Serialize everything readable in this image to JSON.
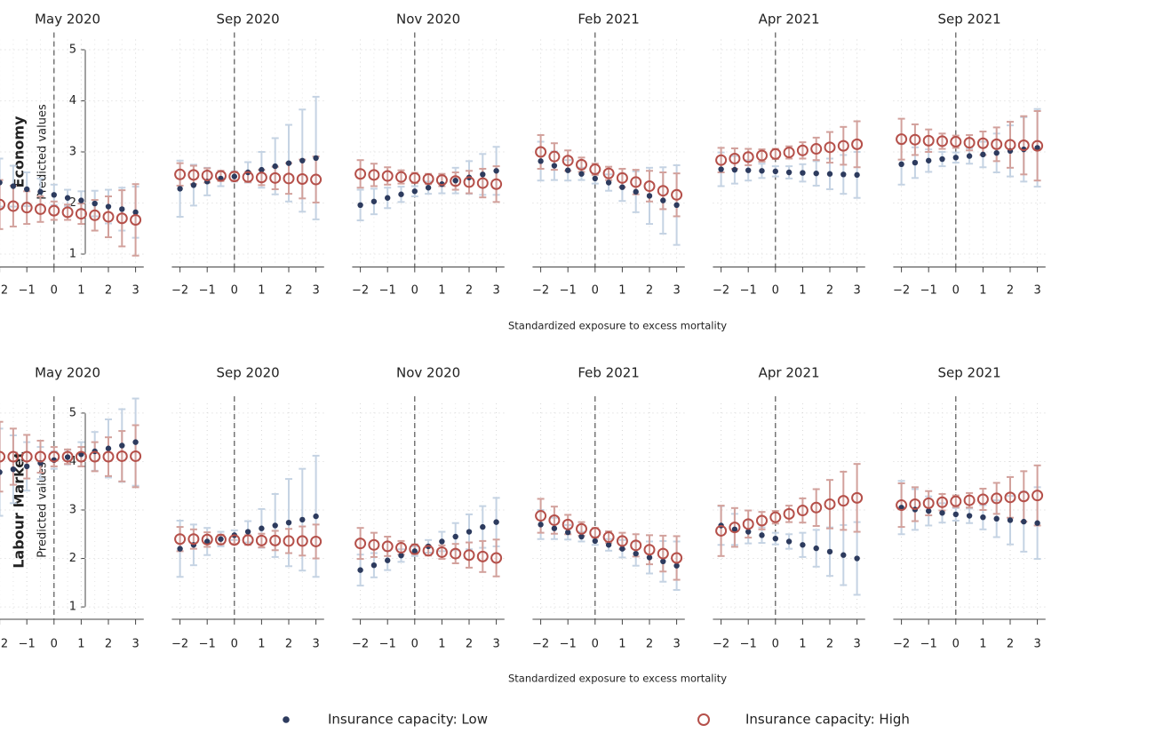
{
  "chart_data": {
    "type": "errorbar",
    "xlabel": "Standardized exposure to excess mortality",
    "ylabel": "Predicted values",
    "x": [
      -2,
      -1.5,
      -1,
      -0.5,
      0,
      0.5,
      1,
      1.5,
      2,
      2.5,
      3
    ],
    "xlim": [
      -2.3,
      3.3
    ],
    "xticks": [
      {
        "value": -2,
        "label": "−2"
      },
      {
        "value": -1,
        "label": "−1"
      },
      0,
      1,
      2,
      3
    ],
    "ylim": [
      0.8,
      5.2
    ],
    "yticks": [
      1,
      2,
      3,
      4,
      5
    ],
    "vline": 0,
    "grid": true,
    "legend": "bottom",
    "series": [
      {
        "name": "Insurance capacity: Low",
        "color": "#2d3b5e",
        "error_color": "#c5d3e3",
        "marker": "filled"
      },
      {
        "name": "Insurance capacity: High",
        "color": "#b5504a",
        "error_color": "#d2a19c",
        "marker": "open"
      }
    ],
    "rows": [
      {
        "label": "Economy",
        "panels": [
          {
            "title": "May 2020",
            "series": [
              {
                "values": [
                  2.4,
                  2.33,
                  2.27,
                  2.22,
                  2.16,
                  2.1,
                  2.05,
                  1.99,
                  1.93,
                  1.88,
                  1.82
                ],
                "errors": [
                  0.47,
                  0.4,
                  0.33,
                  0.26,
                  0.2,
                  0.16,
                  0.18,
                  0.25,
                  0.33,
                  0.42,
                  0.5
                ]
              },
              {
                "values": [
                  1.97,
                  1.94,
                  1.91,
                  1.88,
                  1.85,
                  1.82,
                  1.79,
                  1.76,
                  1.73,
                  1.7,
                  1.67
                ],
                "errors": [
                  0.48,
                  0.4,
                  0.32,
                  0.25,
                  0.18,
                  0.15,
                  0.2,
                  0.3,
                  0.4,
                  0.55,
                  0.7
                ]
              }
            ]
          },
          {
            "title": "Sep 2020",
            "series": [
              {
                "values": [
                  2.28,
                  2.35,
                  2.42,
                  2.48,
                  2.52,
                  2.6,
                  2.65,
                  2.72,
                  2.78,
                  2.83,
                  2.88
                ],
                "errors": [
                  0.55,
                  0.4,
                  0.27,
                  0.15,
                  0.1,
                  0.2,
                  0.35,
                  0.55,
                  0.75,
                  1.0,
                  1.2
                ]
              },
              {
                "values": [
                  2.56,
                  2.55,
                  2.54,
                  2.53,
                  2.52,
                  2.51,
                  2.5,
                  2.49,
                  2.48,
                  2.47,
                  2.46
                ],
                "errors": [
                  0.22,
                  0.18,
                  0.14,
                  0.1,
                  0.08,
                  0.1,
                  0.15,
                  0.22,
                  0.3,
                  0.38,
                  0.45
                ]
              }
            ]
          },
          {
            "title": "Nov 2020",
            "series": [
              {
                "values": [
                  1.96,
                  2.03,
                  2.1,
                  2.17,
                  2.23,
                  2.3,
                  2.37,
                  2.44,
                  2.5,
                  2.56,
                  2.63
                ],
                "errors": [
                  0.3,
                  0.25,
                  0.2,
                  0.15,
                  0.1,
                  0.12,
                  0.18,
                  0.25,
                  0.32,
                  0.4,
                  0.47
                ]
              },
              {
                "values": [
                  2.57,
                  2.55,
                  2.53,
                  2.51,
                  2.49,
                  2.47,
                  2.45,
                  2.43,
                  2.41,
                  2.39,
                  2.37
                ],
                "errors": [
                  0.27,
                  0.22,
                  0.17,
                  0.13,
                  0.1,
                  0.1,
                  0.12,
                  0.17,
                  0.22,
                  0.28,
                  0.35
                ]
              }
            ]
          },
          {
            "title": "Feb 2021",
            "series": [
              {
                "values": [
                  2.82,
                  2.73,
                  2.64,
                  2.57,
                  2.48,
                  2.4,
                  2.31,
                  2.22,
                  2.14,
                  2.05,
                  1.96
                ],
                "errors": [
                  0.38,
                  0.28,
                  0.2,
                  0.12,
                  0.1,
                  0.16,
                  0.27,
                  0.4,
                  0.55,
                  0.65,
                  0.78
                ]
              },
              {
                "values": [
                  3.0,
                  2.91,
                  2.83,
                  2.75,
                  2.66,
                  2.58,
                  2.49,
                  2.41,
                  2.33,
                  2.24,
                  2.16
                ],
                "errors": [
                  0.33,
                  0.26,
                  0.2,
                  0.14,
                  0.11,
                  0.13,
                  0.18,
                  0.24,
                  0.3,
                  0.36,
                  0.42
                ]
              }
            ]
          },
          {
            "title": "Apr 2021",
            "series": [
              {
                "values": [
                  2.66,
                  2.65,
                  2.64,
                  2.63,
                  2.62,
                  2.6,
                  2.59,
                  2.58,
                  2.57,
                  2.56,
                  2.55
                ],
                "errors": [
                  0.33,
                  0.27,
                  0.2,
                  0.14,
                  0.1,
                  0.12,
                  0.17,
                  0.24,
                  0.3,
                  0.38,
                  0.45
                ]
              },
              {
                "values": [
                  2.84,
                  2.87,
                  2.9,
                  2.93,
                  2.96,
                  2.99,
                  3.03,
                  3.06,
                  3.09,
                  3.12,
                  3.15
                ],
                "errors": [
                  0.24,
                  0.2,
                  0.16,
                  0.12,
                  0.1,
                  0.12,
                  0.16,
                  0.22,
                  0.3,
                  0.37,
                  0.45
                ]
              }
            ]
          },
          {
            "title": "Sep 2021",
            "series": [
              {
                "values": [
                  2.76,
                  2.79,
                  2.83,
                  2.86,
                  2.89,
                  2.92,
                  2.95,
                  2.98,
                  3.02,
                  3.05,
                  3.08
                ],
                "errors": [
                  0.4,
                  0.3,
                  0.22,
                  0.14,
                  0.1,
                  0.15,
                  0.25,
                  0.38,
                  0.5,
                  0.63,
                  0.76
                ]
              },
              {
                "values": [
                  3.25,
                  3.24,
                  3.22,
                  3.21,
                  3.2,
                  3.18,
                  3.17,
                  3.15,
                  3.14,
                  3.13,
                  3.12
                ],
                "errors": [
                  0.4,
                  0.3,
                  0.22,
                  0.15,
                  0.12,
                  0.15,
                  0.23,
                  0.33,
                  0.45,
                  0.57,
                  0.68
                ]
              }
            ]
          }
        ]
      },
      {
        "label": "Labour Market",
        "panels": [
          {
            "title": "May 2020",
            "series": [
              {
                "values": [
                  3.78,
                  3.84,
                  3.9,
                  3.97,
                  4.03,
                  4.09,
                  4.15,
                  4.21,
                  4.27,
                  4.33,
                  4.4
                ],
                "errors": [
                  0.9,
                  0.7,
                  0.5,
                  0.33,
                  0.18,
                  0.15,
                  0.25,
                  0.4,
                  0.6,
                  0.75,
                  0.9
                ]
              },
              {
                "values": [
                  4.1,
                  4.1,
                  4.1,
                  4.1,
                  4.1,
                  4.1,
                  4.1,
                  4.1,
                  4.1,
                  4.11,
                  4.11
                ],
                "errors": [
                  0.72,
                  0.58,
                  0.45,
                  0.33,
                  0.2,
                  0.15,
                  0.2,
                  0.3,
                  0.4,
                  0.52,
                  0.64
                ]
              }
            ]
          },
          {
            "title": "Sep 2020",
            "series": [
              {
                "values": [
                  2.2,
                  2.28,
                  2.35,
                  2.4,
                  2.48,
                  2.55,
                  2.62,
                  2.68,
                  2.74,
                  2.8,
                  2.87
                ],
                "errors": [
                  0.58,
                  0.42,
                  0.28,
                  0.15,
                  0.1,
                  0.22,
                  0.4,
                  0.65,
                  0.9,
                  1.05,
                  1.25
                ]
              },
              {
                "values": [
                  2.4,
                  2.4,
                  2.39,
                  2.39,
                  2.38,
                  2.38,
                  2.37,
                  2.37,
                  2.36,
                  2.36,
                  2.35
                ],
                "errors": [
                  0.25,
                  0.2,
                  0.15,
                  0.1,
                  0.08,
                  0.1,
                  0.14,
                  0.2,
                  0.25,
                  0.3,
                  0.35
                ]
              }
            ]
          },
          {
            "title": "Nov 2020",
            "series": [
              {
                "values": [
                  1.76,
                  1.86,
                  1.96,
                  2.06,
                  2.15,
                  2.25,
                  2.35,
                  2.45,
                  2.55,
                  2.65,
                  2.75
                ],
                "errors": [
                  0.32,
                  0.25,
                  0.2,
                  0.13,
                  0.1,
                  0.13,
                  0.2,
                  0.28,
                  0.36,
                  0.43,
                  0.5
                ]
              },
              {
                "values": [
                  2.31,
                  2.28,
                  2.25,
                  2.22,
                  2.19,
                  2.16,
                  2.13,
                  2.1,
                  2.07,
                  2.04,
                  2.01
                ],
                "errors": [
                  0.32,
                  0.25,
                  0.2,
                  0.14,
                  0.1,
                  0.1,
                  0.14,
                  0.2,
                  0.26,
                  0.32,
                  0.38
                ]
              }
            ]
          },
          {
            "title": "Feb 2021",
            "series": [
              {
                "values": [
                  2.7,
                  2.62,
                  2.54,
                  2.45,
                  2.36,
                  2.28,
                  2.2,
                  2.1,
                  2.02,
                  1.94,
                  1.85
                ],
                "errors": [
                  0.3,
                  0.22,
                  0.15,
                  0.1,
                  0.08,
                  0.12,
                  0.18,
                  0.25,
                  0.33,
                  0.42,
                  0.5
                ]
              },
              {
                "values": [
                  2.88,
                  2.79,
                  2.7,
                  2.61,
                  2.53,
                  2.44,
                  2.36,
                  2.27,
                  2.18,
                  2.1,
                  2.01
                ],
                "errors": [
                  0.35,
                  0.28,
                  0.2,
                  0.14,
                  0.1,
                  0.12,
                  0.17,
                  0.23,
                  0.3,
                  0.37,
                  0.45
                ]
              }
            ]
          },
          {
            "title": "Apr 2021",
            "series": [
              {
                "values": [
                  2.68,
                  2.6,
                  2.55,
                  2.48,
                  2.41,
                  2.35,
                  2.28,
                  2.21,
                  2.14,
                  2.07,
                  2.0
                ],
                "errors": [
                  0.4,
                  0.32,
                  0.24,
                  0.16,
                  0.12,
                  0.15,
                  0.25,
                  0.38,
                  0.5,
                  0.62,
                  0.75
                ]
              },
              {
                "values": [
                  2.57,
                  2.64,
                  2.71,
                  2.78,
                  2.85,
                  2.92,
                  2.99,
                  3.05,
                  3.12,
                  3.19,
                  3.25
                ],
                "errors": [
                  0.52,
                  0.4,
                  0.28,
                  0.18,
                  0.13,
                  0.17,
                  0.25,
                  0.38,
                  0.5,
                  0.6,
                  0.7
                ]
              }
            ]
          },
          {
            "title": "Sep 2021",
            "series": [
              {
                "values": [
                  3.05,
                  3.01,
                  2.98,
                  2.94,
                  2.91,
                  2.88,
                  2.85,
                  2.82,
                  2.79,
                  2.76,
                  2.73
                ],
                "errors": [
                  0.55,
                  0.42,
                  0.3,
                  0.2,
                  0.13,
                  0.15,
                  0.25,
                  0.38,
                  0.5,
                  0.62,
                  0.74
                ]
              },
              {
                "values": [
                  3.1,
                  3.12,
                  3.14,
                  3.16,
                  3.18,
                  3.2,
                  3.22,
                  3.24,
                  3.26,
                  3.28,
                  3.3
                ],
                "errors": [
                  0.45,
                  0.35,
                  0.25,
                  0.17,
                  0.12,
                  0.15,
                  0.22,
                  0.32,
                  0.42,
                  0.52,
                  0.62
                ]
              }
            ]
          }
        ]
      }
    ]
  }
}
